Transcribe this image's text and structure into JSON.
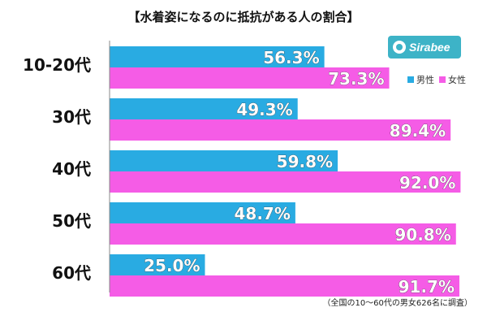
{
  "chart_data": {
    "type": "bar",
    "title": "【水着姿になるのに抵抗がある人の割合】",
    "categories": [
      "10-20代",
      "30代",
      "40代",
      "50代",
      "60代"
    ],
    "series": [
      {
        "name": "男性",
        "color": "#29abe2",
        "values": [
          56.3,
          49.3,
          59.8,
          48.7,
          25.0
        ],
        "labels": [
          "56.3%",
          "49.3%",
          "59.8%",
          "48.7%",
          "25.0%"
        ]
      },
      {
        "name": "女性",
        "color": "#f55ce6",
        "values": [
          73.3,
          89.4,
          92.0,
          90.8,
          91.7
        ],
        "labels": [
          "73.3%",
          "89.4%",
          "92.0%",
          "90.8%",
          "91.7%"
        ]
      }
    ],
    "orientation": "horizontal",
    "xlim": [
      0,
      100
    ],
    "grid": false,
    "legend_position": "top-right"
  },
  "brand": {
    "name": "Sirabee",
    "icon": "sirabee-logo-icon"
  },
  "footnote": "（全国の10〜60代の男女626名に調査）"
}
